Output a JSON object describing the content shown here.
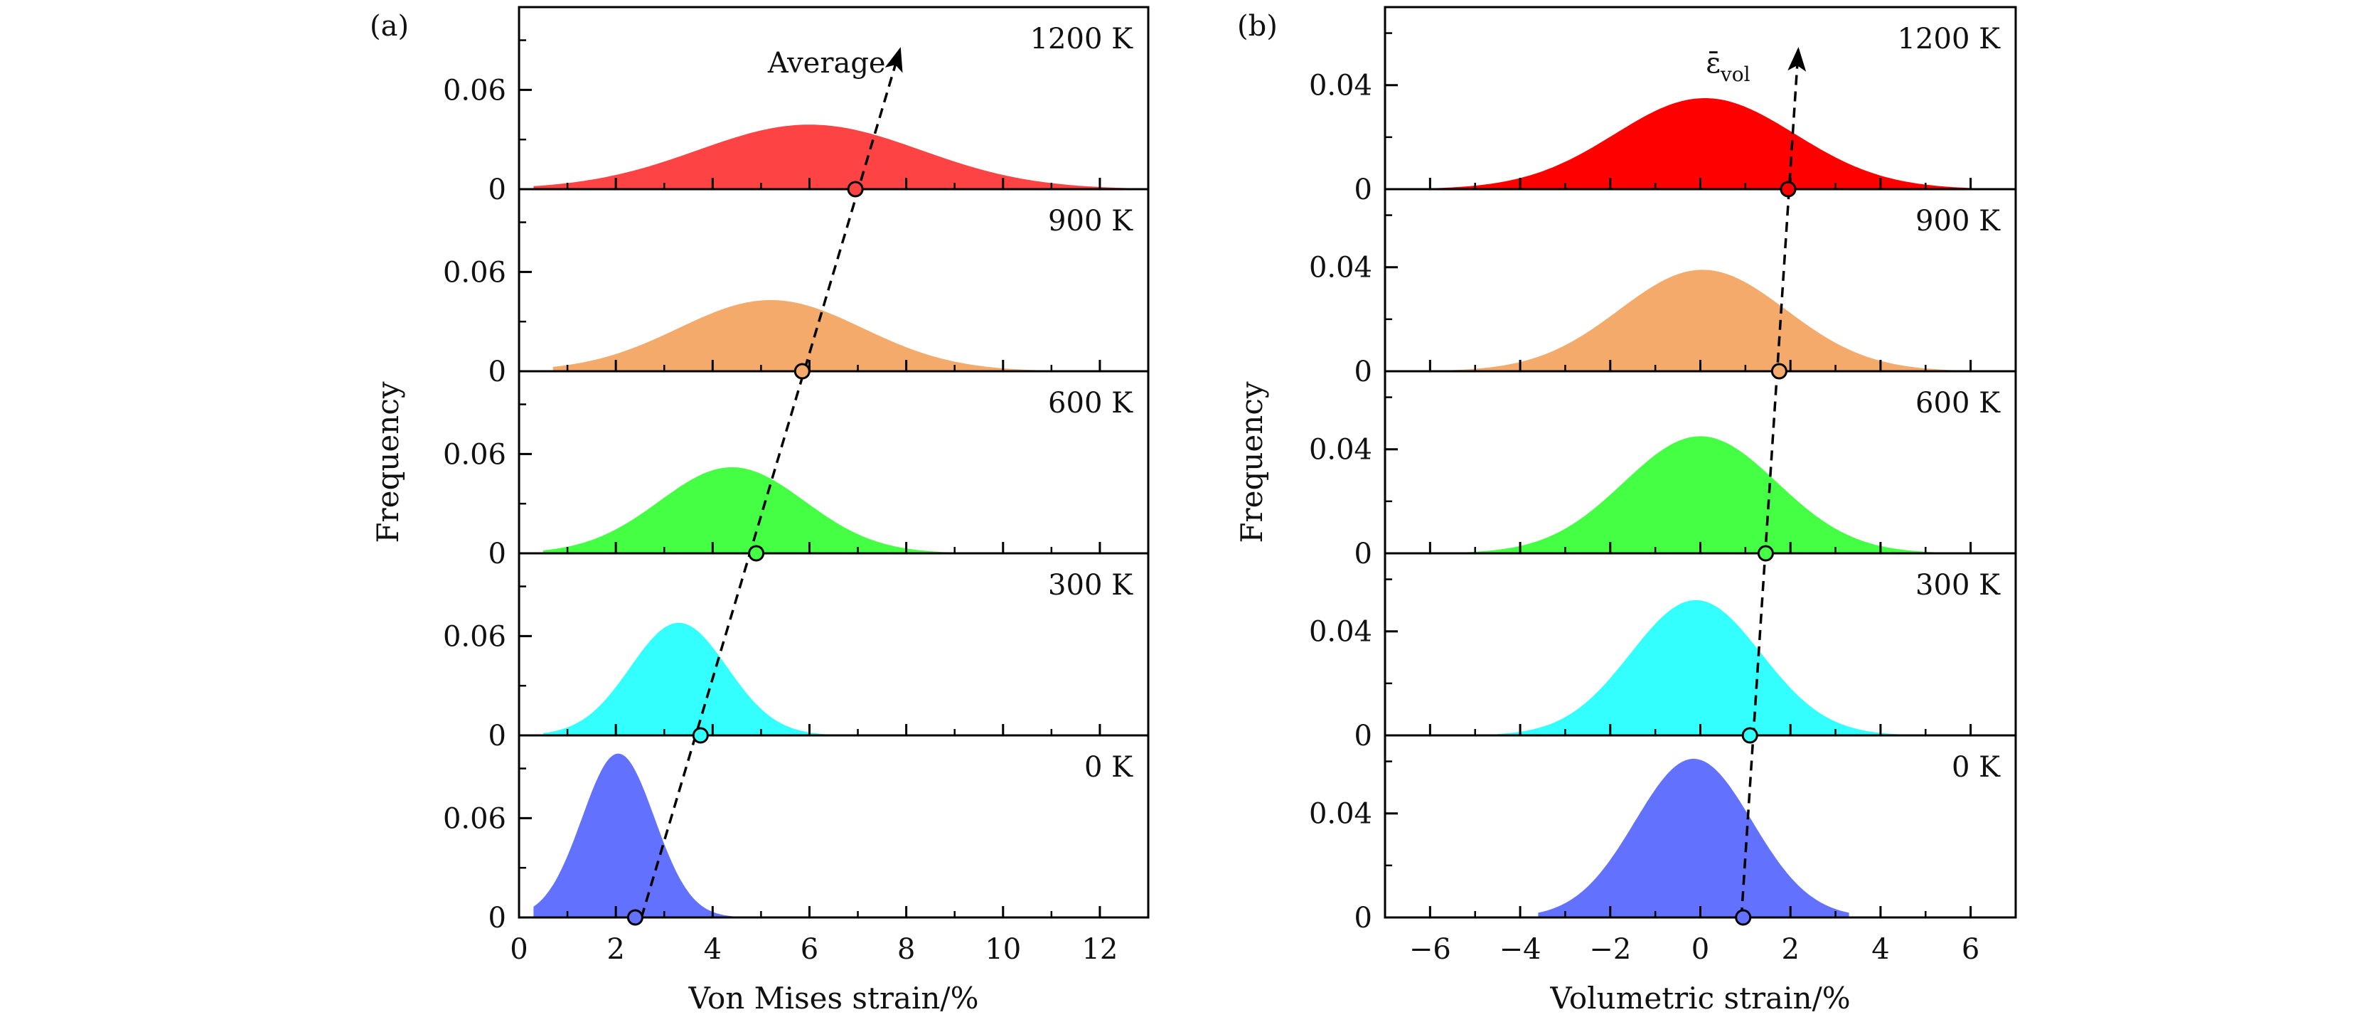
{
  "chart_data": [
    {
      "type": "area",
      "panel_label": "(a)",
      "xlabel": "Von Mises strain/%",
      "ylabel": "Frequency",
      "xlim": [
        0,
        13
      ],
      "xticks": [
        0,
        2,
        4,
        6,
        8,
        10,
        12
      ],
      "xtick_labels": [
        "0",
        "2",
        "4",
        "6",
        "8",
        "10",
        "12"
      ],
      "ylim": [
        0,
        0.11
      ],
      "yticks": [
        0,
        0.06
      ],
      "ytick_labels": [
        "0",
        "0.06"
      ],
      "annotation": "Average",
      "series": [
        {
          "name": "0 K",
          "color": "#6272ff",
          "mean": 2.05,
          "sd": 0.75,
          "peak": 0.099,
          "xmin": 0.3,
          "xmax": 6.5,
          "average": 2.4
        },
        {
          "name": "300 K",
          "color": "#33ffff",
          "mean": 3.3,
          "sd": 1.0,
          "peak": 0.068,
          "xmin": 0.5,
          "xmax": 9.5,
          "average": 3.75
        },
        {
          "name": "600 K",
          "color": "#44ff44",
          "mean": 4.4,
          "sd": 1.5,
          "peak": 0.052,
          "xmin": 0.5,
          "xmax": 11.5,
          "average": 4.9
        },
        {
          "name": "900 K",
          "color": "#f4aa6a",
          "mean": 5.2,
          "sd": 1.9,
          "peak": 0.043,
          "xmin": 0.7,
          "xmax": 11.5,
          "average": 5.85
        },
        {
          "name": "1200 K",
          "color": "#fd4343",
          "mean": 6.0,
          "sd": 2.3,
          "peak": 0.039,
          "xmin": 0.3,
          "xmax": 12.9,
          "average": 6.95
        }
      ]
    },
    {
      "type": "area",
      "panel_label": "(b)",
      "xlabel": "Volumetric strain/%",
      "ylabel": "Frequency",
      "xlim": [
        -7,
        7
      ],
      "xticks": [
        -6,
        -4,
        -2,
        0,
        2,
        4,
        6
      ],
      "xtick_labels": [
        "−6",
        "−4",
        "−2",
        "0",
        "2",
        "4",
        "6"
      ],
      "ylim": [
        0,
        0.07
      ],
      "yticks": [
        0,
        0.04
      ],
      "ytick_labels": [
        "0",
        "0.04"
      ],
      "annotation": "ε̄vol",
      "annotation_main": "ε̄",
      "annotation_sub": "vol",
      "series": [
        {
          "name": "0 K",
          "color": "#6272ff",
          "mean": -0.15,
          "sd": 1.3,
          "peak": 0.061,
          "xmin": -3.6,
          "xmax": 3.3,
          "average": 0.95
        },
        {
          "name": "300 K",
          "color": "#33ffff",
          "mean": -0.1,
          "sd": 1.45,
          "peak": 0.052,
          "xmin": -4.5,
          "xmax": 7.0,
          "average": 1.1
        },
        {
          "name": "600 K",
          "color": "#44ff44",
          "mean": 0.0,
          "sd": 1.7,
          "peak": 0.045,
          "xmin": -6.5,
          "xmax": 6.5,
          "average": 1.45
        },
        {
          "name": "900 K",
          "color": "#f4aa6a",
          "mean": 0.05,
          "sd": 1.85,
          "peak": 0.039,
          "xmin": -6.5,
          "xmax": 6.5,
          "average": 1.75
        },
        {
          "name": "1200 K",
          "color": "#ff0000",
          "mean": 0.1,
          "sd": 2.0,
          "peak": 0.035,
          "xmin": -7.0,
          "xmax": 7.0,
          "average": 1.95
        }
      ]
    }
  ]
}
